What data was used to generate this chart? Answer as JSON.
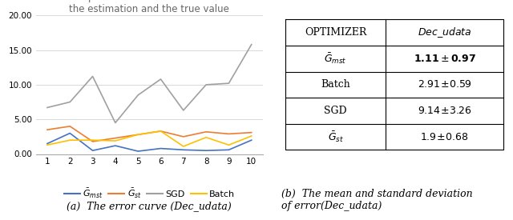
{
  "x": [
    1,
    2,
    3,
    4,
    5,
    6,
    7,
    8,
    9,
    10
  ],
  "G_mst": [
    1.5,
    3.0,
    0.5,
    1.2,
    0.4,
    0.8,
    0.6,
    0.5,
    0.6,
    2.0
  ],
  "G_st": [
    3.5,
    4.0,
    1.8,
    2.3,
    2.8,
    3.3,
    2.5,
    3.2,
    2.9,
    3.1
  ],
  "SGD": [
    6.7,
    7.5,
    11.2,
    4.5,
    8.5,
    10.8,
    6.3,
    10.0,
    10.2,
    15.8
  ],
  "Batch": [
    1.3,
    2.0,
    2.0,
    1.9,
    2.8,
    3.3,
    1.1,
    2.4,
    1.3,
    2.6
  ],
  "line_colors": {
    "G_mst": "#4472C4",
    "G_st": "#ED7D31",
    "SGD": "#A0A0A0",
    "Batch": "#FFC000"
  },
  "chart_title_line1": "The squared deviation curve between",
  "chart_title_line2": "the estimation and the true value",
  "ylim": [
    0,
    20
  ],
  "yticks": [
    0.0,
    5.0,
    10.0,
    15.0,
    20.0
  ],
  "ytick_labels": [
    "0.00",
    "5.00",
    "10.00",
    "15.00",
    "20.00"
  ],
  "caption_a": "(a)  The error curve (Dec_udata)",
  "caption_b_line1": "(b)  The mean and standard deviation",
  "caption_b_line2": "of error(Dec_udata)",
  "bg_color": "#ffffff",
  "grid_color": "#d8d8d8",
  "title_fontsize": 8.5,
  "axis_fontsize": 7.5,
  "legend_fontsize": 8
}
